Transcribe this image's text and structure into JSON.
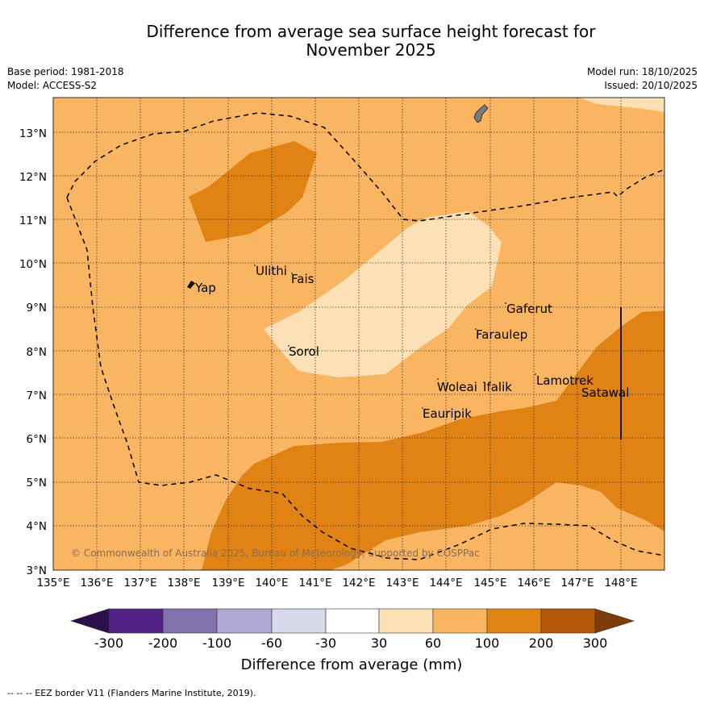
{
  "header": {
    "title_line1": "Difference from average sea surface height forecast for",
    "title_line2": "November 2025",
    "base_period": "Base period: 1981-2018",
    "model": "Model: ACCESS-S2",
    "model_run": "Model run: 18/10/2025",
    "issued": "Issued: 20/10/2025"
  },
  "map": {
    "lon_ticks": [
      "135°E",
      "136°E",
      "137°E",
      "138°E",
      "139°E",
      "140°E",
      "141°E",
      "142°E",
      "143°E",
      "144°E",
      "145°E",
      "146°E",
      "147°E",
      "148°E"
    ],
    "lat_ticks": [
      "3°N",
      "4°N",
      "5°N",
      "6°N",
      "7°N",
      "8°N",
      "9°N",
      "10°N",
      "11°N",
      "12°N",
      "13°N"
    ],
    "places": {
      "ulithi": "Ulithi",
      "fais": "Fais",
      "yap": "Yap",
      "gaferut": "Gaferut",
      "faraulep": "Faraulep",
      "sorol": "Sorol",
      "lamotrek": "Lamotrek",
      "satawal": "Satawal",
      "woleai": "Woleai",
      "ifalik": "Ifalik",
      "eauripik": "Eauripik"
    },
    "copyright": "© Commonwealth of Australia 2025, Bureau of Meteorology, Supported by COSPPac"
  },
  "colorbar": {
    "labels": [
      "-300",
      "-200",
      "-100",
      "-60",
      "-30",
      "30",
      "60",
      "100",
      "200",
      "300"
    ],
    "title": "Difference from average (mm)",
    "colors": {
      "below_min": "#2d0f4a",
      "c1": "#522285",
      "c2": "#7f72ad",
      "c3": "#b0a8d2",
      "c4": "#d9d9ec",
      "c5": "#ffffff",
      "c6": "#fde0b6",
      "c7": "#f9b561",
      "c8": "#e08214",
      "c9": "#b35806",
      "above_max": "#7f3b08"
    }
  },
  "footnote": "--  --  -- EEZ border V11 (Flanders Marine Institute, 2019)."
}
